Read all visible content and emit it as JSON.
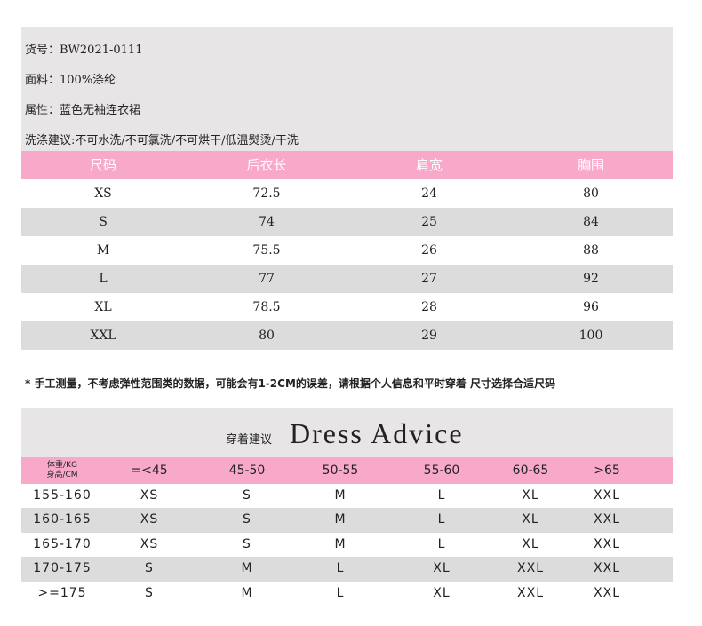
{
  "info": [
    "货号：BW2021-0111",
    "面料：100%涤纶",
    "属性：蓝色无袖连衣裙",
    "洗涤建议:不可水洗/不可氯洗/不可烘干/低温熨烫/干洗"
  ],
  "size_table": {
    "headers": [
      "尺码",
      "后衣长",
      "肩宽",
      "胸围"
    ],
    "rows": [
      [
        "XS",
        "72.5",
        "24",
        "80"
      ],
      [
        "S",
        "74",
        "25",
        "84"
      ],
      [
        "M",
        "75.5",
        "26",
        "88"
      ],
      [
        "L",
        "77",
        "27",
        "92"
      ],
      [
        "XL",
        "78.5",
        "28",
        "96"
      ],
      [
        "XXL",
        "80",
        "29",
        "100"
      ]
    ]
  },
  "note": "* 手工测量，不考虑弹性范围类的数据，可能会有1-2CM的误差，请根据个人信息和平时穿着      尺寸选择合适尺码",
  "advice": {
    "title_cn": "穿着建议",
    "title_en": "Dress Advice",
    "corner_top": "体重/KG",
    "corner_bottom": "身高/CM",
    "weights": [
      "=<45",
      "45-50",
      "50-55",
      "55-60",
      "60-65",
      ">65"
    ],
    "rows": [
      [
        "155-160",
        "XS",
        "S",
        "M",
        "L",
        "XL",
        "XXL"
      ],
      [
        "160-165",
        "XS",
        "S",
        "M",
        "L",
        "XL",
        "XXL"
      ],
      [
        "165-170",
        "XS",
        "S",
        "M",
        "L",
        "XL",
        "XXL"
      ],
      [
        "170-175",
        "S",
        "M",
        "L",
        "XL",
        "XXL",
        "XXL"
      ],
      [
        ">=175",
        "S",
        "M",
        "L",
        "XL",
        "XXL",
        "XXL"
      ]
    ]
  },
  "colors": {
    "pink": "#f8a9c9",
    "gray": "#e7e5e6",
    "row_gray": "#dcdcdc"
  }
}
